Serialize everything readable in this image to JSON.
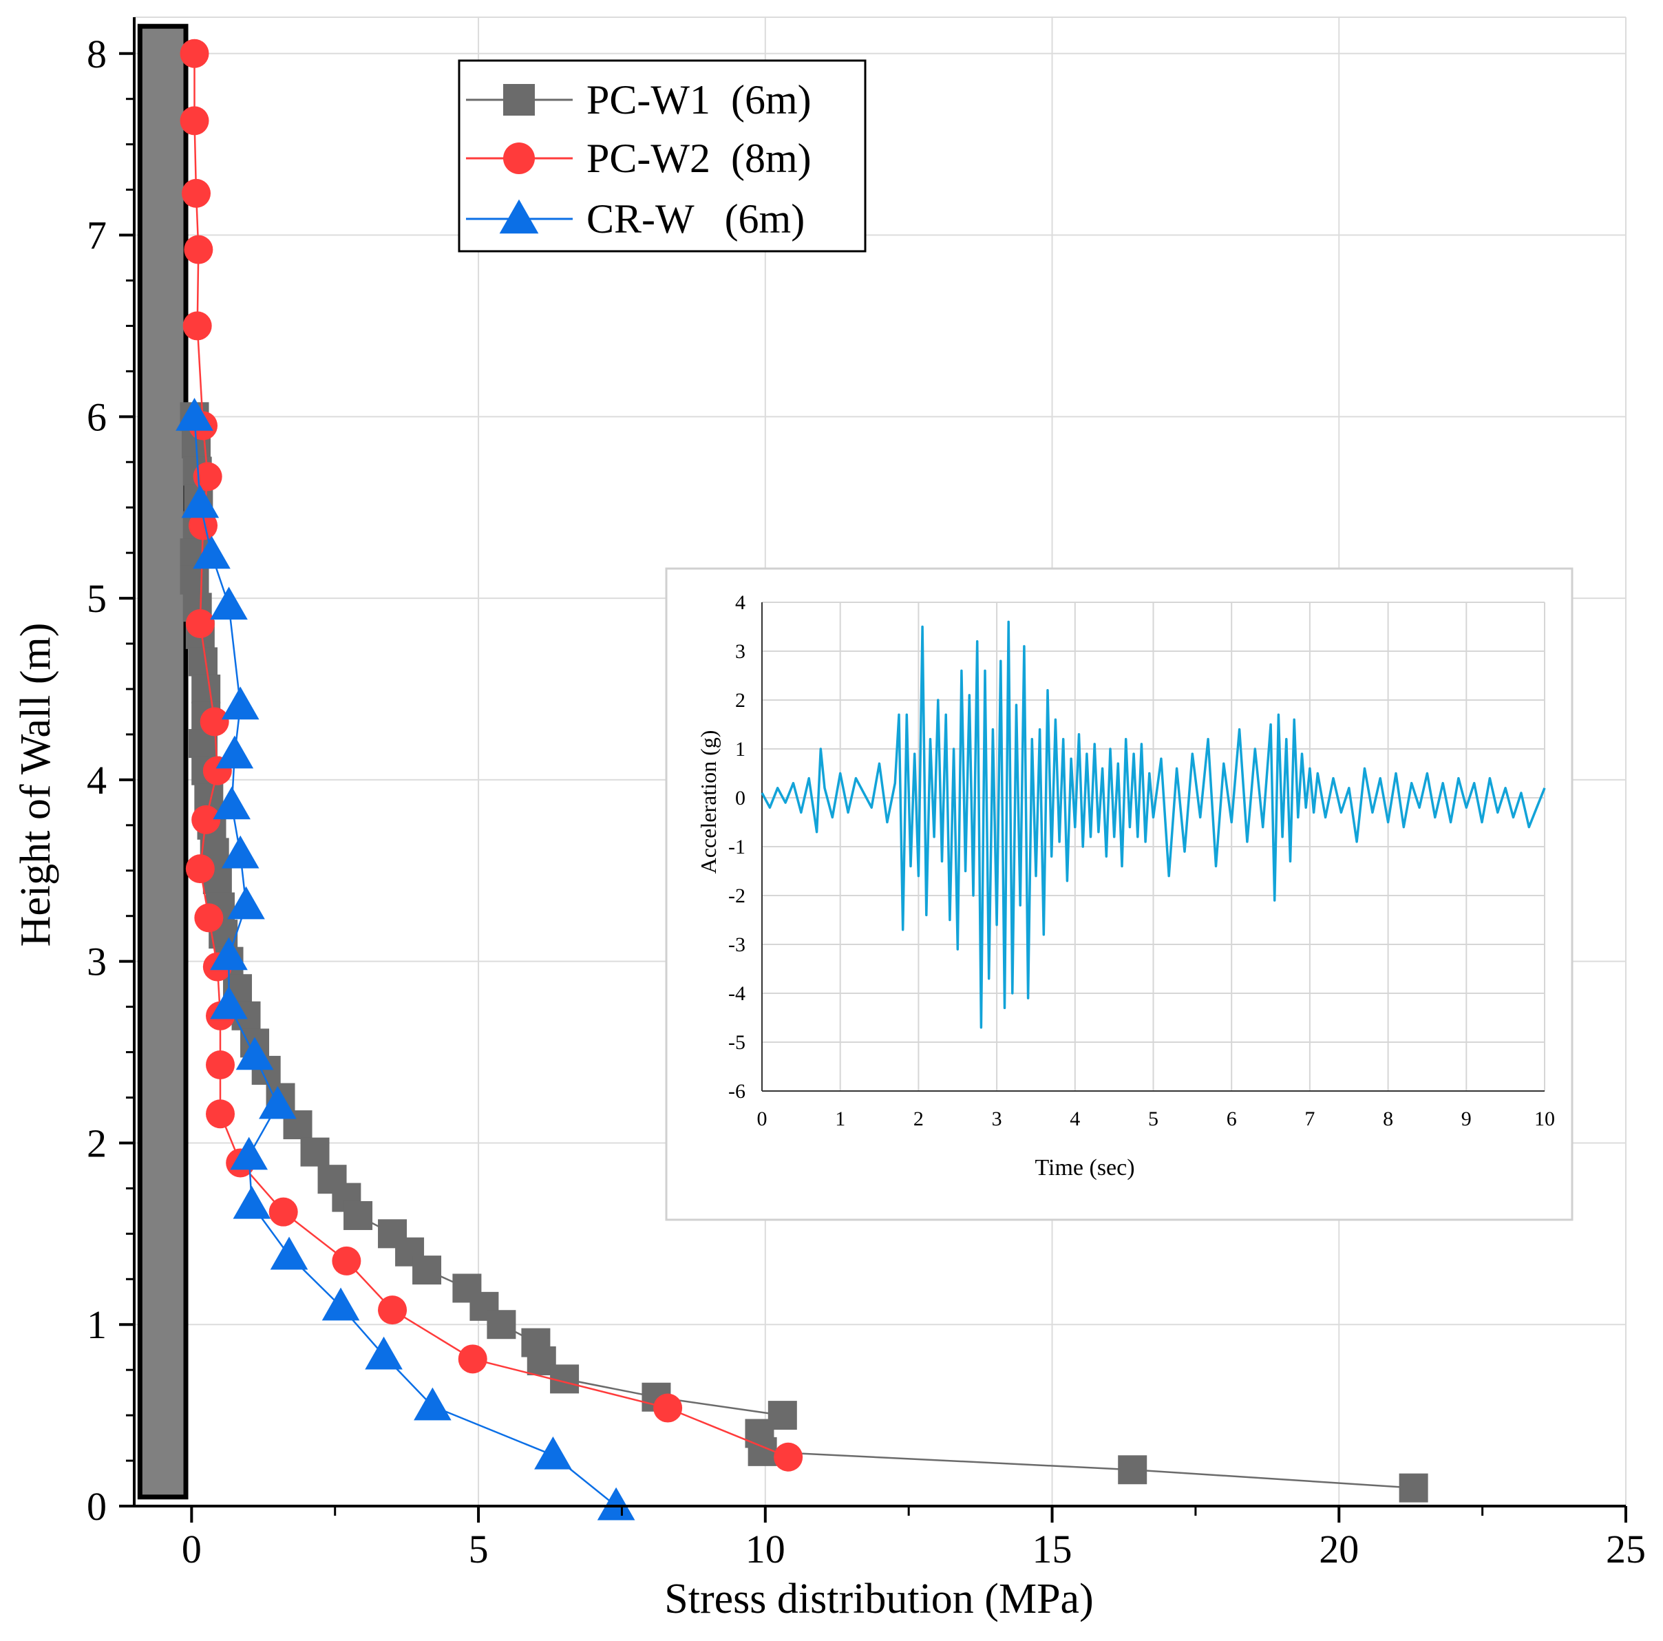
{
  "colors": {
    "pc_w1": "#6b6b6b",
    "pc_w2": "#ff3b3b",
    "cr_w": "#0b6fe6",
    "inset_line": "#12a3d8",
    "wall_fill": "#808080",
    "grid": "#dcdcdc"
  },
  "chart_data": [
    {
      "type": "line",
      "xlabel": "Stress distribution (MPa)",
      "ylabel": "Height of Wall (m)",
      "xlim": [
        -1,
        25
      ],
      "ylim": [
        0,
        8.2
      ],
      "x_ticks": [
        "0",
        "5",
        "10",
        "15",
        "20",
        "25"
      ],
      "y_ticks": [
        "0",
        "1",
        "2",
        "3",
        "4",
        "5",
        "6",
        "7",
        "8"
      ],
      "grid": true,
      "legend_position": "top-center",
      "wall": {
        "x_range": [
          -0.9,
          -0.1
        ],
        "height_range": [
          0.05,
          8.15
        ]
      },
      "series": [
        {
          "name": "PC-W1  (6m)",
          "marker": "square",
          "points": [
            [
              0.05,
              6.0
            ],
            [
              0.08,
              5.85
            ],
            [
              0.1,
              5.7
            ],
            [
              0.12,
              5.55
            ],
            [
              0.1,
              5.4
            ],
            [
              0.05,
              5.25
            ],
            [
              0.05,
              5.1
            ],
            [
              0.1,
              4.95
            ],
            [
              0.15,
              4.8
            ],
            [
              0.2,
              4.65
            ],
            [
              0.25,
              4.5
            ],
            [
              0.25,
              4.35
            ],
            [
              0.2,
              4.2
            ],
            [
              0.25,
              4.05
            ],
            [
              0.3,
              3.9
            ],
            [
              0.35,
              3.75
            ],
            [
              0.4,
              3.6
            ],
            [
              0.45,
              3.45
            ],
            [
              0.5,
              3.3
            ],
            [
              0.55,
              3.15
            ],
            [
              0.65,
              3.0
            ],
            [
              0.8,
              2.85
            ],
            [
              0.95,
              2.7
            ],
            [
              1.1,
              2.55
            ],
            [
              1.3,
              2.4
            ],
            [
              1.55,
              2.25
            ],
            [
              1.85,
              2.1
            ],
            [
              2.15,
              1.95
            ],
            [
              2.45,
              1.8
            ],
            [
              2.7,
              1.7
            ],
            [
              2.9,
              1.6
            ],
            [
              3.5,
              1.5
            ],
            [
              3.8,
              1.4
            ],
            [
              4.1,
              1.3
            ],
            [
              4.8,
              1.2
            ],
            [
              5.1,
              1.1
            ],
            [
              5.4,
              1.0
            ],
            [
              6.0,
              0.9
            ],
            [
              6.1,
              0.8
            ],
            [
              6.5,
              0.7
            ],
            [
              8.1,
              0.6
            ],
            [
              10.3,
              0.5
            ],
            [
              9.9,
              0.4
            ],
            [
              9.95,
              0.3
            ],
            [
              16.4,
              0.2
            ],
            [
              21.3,
              0.1
            ]
          ]
        },
        {
          "name": "PC-W2  (8m)",
          "marker": "circle",
          "points": [
            [
              0.05,
              8.0
            ],
            [
              0.05,
              7.63
            ],
            [
              0.08,
              7.23
            ],
            [
              0.12,
              6.92
            ],
            [
              0.1,
              6.5
            ],
            [
              0.2,
              5.95
            ],
            [
              0.28,
              5.67
            ],
            [
              0.2,
              5.4
            ],
            [
              0.15,
              4.86
            ],
            [
              0.4,
              4.32
            ],
            [
              0.45,
              4.05
            ],
            [
              0.25,
              3.78
            ],
            [
              0.15,
              3.51
            ],
            [
              0.3,
              3.24
            ],
            [
              0.45,
              2.97
            ],
            [
              0.5,
              2.7
            ],
            [
              0.5,
              2.43
            ],
            [
              0.5,
              2.16
            ],
            [
              0.85,
              1.89
            ],
            [
              1.6,
              1.62
            ],
            [
              2.7,
              1.35
            ],
            [
              3.5,
              1.08
            ],
            [
              4.9,
              0.81
            ],
            [
              8.3,
              0.54
            ],
            [
              10.4,
              0.27
            ]
          ]
        },
        {
          "name": "CR-W   (6m)",
          "marker": "triangle",
          "points": [
            [
              0.05,
              6.0
            ],
            [
              0.15,
              5.52
            ],
            [
              0.35,
              5.24
            ],
            [
              0.65,
              4.96
            ],
            [
              0.85,
              4.41
            ],
            [
              0.75,
              4.14
            ],
            [
              0.7,
              3.86
            ],
            [
              0.85,
              3.59
            ],
            [
              0.95,
              3.31
            ],
            [
              0.65,
              3.03
            ],
            [
              0.65,
              2.76
            ],
            [
              1.1,
              2.48
            ],
            [
              1.5,
              2.21
            ],
            [
              1.0,
              1.93
            ],
            [
              1.05,
              1.66
            ],
            [
              1.7,
              1.38
            ],
            [
              2.6,
              1.1
            ],
            [
              3.35,
              0.83
            ],
            [
              4.2,
              0.55
            ],
            [
              6.3,
              0.28
            ],
            [
              7.4,
              0.0
            ]
          ]
        }
      ]
    },
    {
      "type": "line",
      "xlabel": "Time (sec)",
      "ylabel": "Acceleration  (g)",
      "xlim": [
        0,
        10
      ],
      "ylim": [
        -6,
        4
      ],
      "x_ticks": [
        "0",
        "1",
        "2",
        "3",
        "4",
        "5",
        "6",
        "7",
        "8",
        "9",
        "10"
      ],
      "y_ticks": [
        "4",
        "3",
        "2",
        "1",
        "0",
        "-1",
        "-2",
        "-3",
        "-4",
        "-5",
        "-6"
      ],
      "grid": true,
      "x": [
        0.0,
        0.1,
        0.2,
        0.3,
        0.4,
        0.5,
        0.6,
        0.7,
        0.75,
        0.8,
        0.9,
        1.0,
        1.1,
        1.2,
        1.3,
        1.4,
        1.5,
        1.6,
        1.7,
        1.75,
        1.8,
        1.85,
        1.9,
        1.95,
        2.0,
        2.05,
        2.1,
        2.15,
        2.2,
        2.25,
        2.3,
        2.35,
        2.4,
        2.45,
        2.5,
        2.55,
        2.6,
        2.65,
        2.7,
        2.75,
        2.8,
        2.85,
        2.9,
        2.95,
        3.0,
        3.05,
        3.1,
        3.15,
        3.2,
        3.25,
        3.3,
        3.35,
        3.4,
        3.45,
        3.5,
        3.55,
        3.6,
        3.65,
        3.7,
        3.75,
        3.8,
        3.85,
        3.9,
        3.95,
        4.0,
        4.05,
        4.1,
        4.15,
        4.2,
        4.25,
        4.3,
        4.35,
        4.4,
        4.45,
        4.5,
        4.55,
        4.6,
        4.65,
        4.7,
        4.75,
        4.8,
        4.85,
        4.9,
        4.95,
        5.0,
        5.1,
        5.2,
        5.3,
        5.4,
        5.5,
        5.6,
        5.7,
        5.8,
        5.9,
        6.0,
        6.1,
        6.2,
        6.3,
        6.4,
        6.5,
        6.55,
        6.6,
        6.65,
        6.7,
        6.75,
        6.8,
        6.85,
        6.9,
        6.95,
        7.0,
        7.05,
        7.1,
        7.2,
        7.3,
        7.4,
        7.5,
        7.6,
        7.7,
        7.8,
        7.9,
        8.0,
        8.1,
        8.2,
        8.3,
        8.4,
        8.5,
        8.6,
        8.7,
        8.8,
        8.9,
        9.0,
        9.1,
        9.2,
        9.3,
        9.4,
        9.5,
        9.6,
        9.7,
        9.8,
        9.9,
        10.0
      ],
      "y": [
        0.1,
        -0.2,
        0.2,
        -0.1,
        0.3,
        -0.3,
        0.4,
        -0.7,
        1.0,
        0.2,
        -0.4,
        0.5,
        -0.3,
        0.4,
        0.1,
        -0.2,
        0.7,
        -0.5,
        0.3,
        1.7,
        -2.7,
        1.7,
        -1.4,
        0.9,
        -1.6,
        3.5,
        -2.4,
        1.2,
        -0.8,
        2.0,
        -1.3,
        1.7,
        -2.5,
        1.0,
        -3.1,
        2.6,
        -1.5,
        2.1,
        -2.0,
        3.2,
        -4.7,
        2.6,
        -3.7,
        1.4,
        -2.6,
        2.8,
        -4.3,
        3.6,
        -4.0,
        1.9,
        -2.2,
        3.1,
        -4.1,
        1.2,
        -1.6,
        1.4,
        -2.8,
        2.2,
        -1.2,
        1.6,
        -0.9,
        1.2,
        -1.7,
        0.8,
        -0.6,
        1.3,
        -1.0,
        0.9,
        -0.8,
        1.1,
        -0.7,
        0.6,
        -1.2,
        1.0,
        -0.8,
        0.7,
        -1.4,
        1.2,
        -0.6,
        0.9,
        -0.8,
        1.1,
        -0.9,
        0.5,
        -0.4,
        0.8,
        -1.6,
        0.6,
        -1.1,
        0.9,
        -0.4,
        1.2,
        -1.4,
        0.7,
        -0.5,
        1.4,
        -0.9,
        1.0,
        -0.6,
        1.5,
        -2.1,
        1.7,
        -0.8,
        1.2,
        -1.3,
        1.6,
        -0.4,
        0.9,
        -0.2,
        0.6,
        -0.3,
        0.5,
        -0.4,
        0.4,
        -0.3,
        0.2,
        -0.9,
        0.6,
        -0.3,
        0.4,
        -0.5,
        0.5,
        -0.6,
        0.3,
        -0.2,
        0.5,
        -0.4,
        0.3,
        -0.5,
        0.4,
        -0.2,
        0.3,
        -0.5,
        0.4,
        -0.3,
        0.2,
        -0.4,
        0.1,
        -0.6,
        -0.2,
        0.2
      ]
    }
  ]
}
